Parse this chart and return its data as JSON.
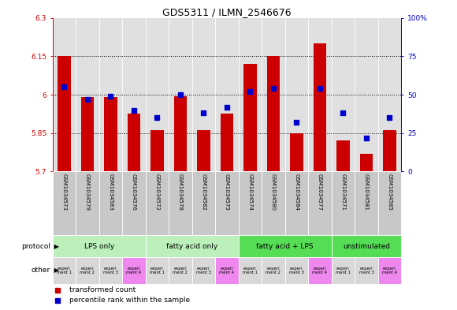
{
  "title": "GDS5311 / ILMN_2546676",
  "samples": [
    "GSM1034573",
    "GSM1034579",
    "GSM1034583",
    "GSM1034576",
    "GSM1034572",
    "GSM1034578",
    "GSM1034582",
    "GSM1034575",
    "GSM1034574",
    "GSM1034580",
    "GSM1034584",
    "GSM1034577",
    "GSM1034571",
    "GSM1034581",
    "GSM1034585"
  ],
  "red_values": [
    6.15,
    5.99,
    5.99,
    5.925,
    5.86,
    5.995,
    5.86,
    5.925,
    6.12,
    6.15,
    5.85,
    6.2,
    5.82,
    5.77,
    5.86
  ],
  "blue_values": [
    55,
    47,
    49,
    40,
    35,
    50,
    38,
    42,
    52,
    54,
    32,
    54,
    38,
    22,
    35
  ],
  "ylim_left": [
    5.7,
    6.3
  ],
  "ylim_right": [
    0,
    100
  ],
  "yticks_left": [
    5.7,
    5.85,
    6.0,
    6.15,
    6.3
  ],
  "yticks_right": [
    0,
    25,
    50,
    75,
    100
  ],
  "ytick_labels_left": [
    "5.7",
    "5.85",
    "6",
    "6.15",
    "6.3"
  ],
  "ytick_labels_right": [
    "0",
    "25",
    "50",
    "75",
    "100%"
  ],
  "hlines": [
    5.85,
    6.0,
    6.15
  ],
  "groups": [
    {
      "label": "LPS only",
      "start": 0,
      "end": 4,
      "color": "#bbf0bb"
    },
    {
      "label": "fatty acid only",
      "start": 4,
      "end": 8,
      "color": "#bbf0bb"
    },
    {
      "label": "fatty acid + LPS",
      "start": 8,
      "end": 12,
      "color": "#55dd55"
    },
    {
      "label": "unstimulated",
      "start": 12,
      "end": 15,
      "color": "#55dd55"
    }
  ],
  "other_cells": [
    {
      "color": "#d8d8d8",
      "label": "experi\nment 1"
    },
    {
      "color": "#d8d8d8",
      "label": "experi\nment 2"
    },
    {
      "color": "#d8d8d8",
      "label": "experi\nment 3"
    },
    {
      "color": "#ee88ee",
      "label": "experi\nment 4"
    },
    {
      "color": "#d8d8d8",
      "label": "experi\nment 1"
    },
    {
      "color": "#d8d8d8",
      "label": "experi\nment 2"
    },
    {
      "color": "#d8d8d8",
      "label": "experi\nment 3"
    },
    {
      "color": "#ee88ee",
      "label": "experi\nment 4"
    },
    {
      "color": "#d8d8d8",
      "label": "experi\nment 1"
    },
    {
      "color": "#d8d8d8",
      "label": "experi\nment 2"
    },
    {
      "color": "#d8d8d8",
      "label": "experi\nment 3"
    },
    {
      "color": "#ee88ee",
      "label": "experi\nment 4"
    },
    {
      "color": "#d8d8d8",
      "label": "experi\nment 1"
    },
    {
      "color": "#d8d8d8",
      "label": "experi\nment 3"
    },
    {
      "color": "#ee88ee",
      "label": "experi\nment 4"
    }
  ],
  "bar_color": "#cc0000",
  "square_color": "#0000cc",
  "left_axis_color": "#cc0000",
  "right_axis_color": "#0000cc",
  "chart_bg": "#e0e0e0",
  "names_bg": "#c8c8c8"
}
